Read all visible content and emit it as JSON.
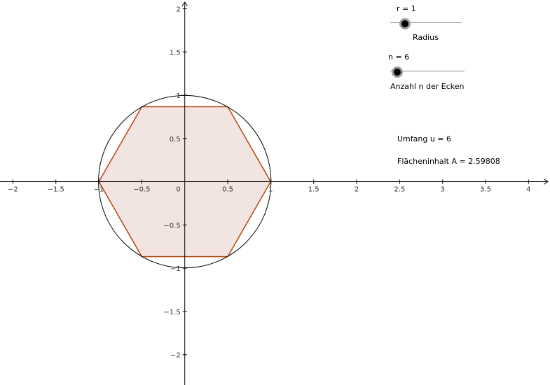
{
  "chart_data": {
    "type": "scatter",
    "axes": {
      "xlim": [
        -2.15,
        4.25
      ],
      "ylim": [
        -2.35,
        2.1
      ],
      "x_ticks": [
        -2,
        -1.5,
        -1,
        -0.5,
        0.5,
        1,
        1.5,
        2,
        2.5,
        3,
        3.5,
        4
      ],
      "y_ticks": [
        2,
        1.5,
        1,
        0.5,
        -0.5,
        -1,
        -1.5,
        -2
      ],
      "x_tick_labels": [
        "−2",
        "−1.5",
        "−1",
        "−0.5",
        "0.5",
        "1",
        "1.5",
        "2",
        "2.5",
        "3",
        "3.5",
        "4"
      ],
      "y_tick_labels": [
        "2",
        "1.5",
        "1",
        "0.5",
        "−0.5",
        "−1",
        "−1.5",
        "−2"
      ],
      "origin_label": "0",
      "grid": false
    },
    "circle": {
      "center": [
        0,
        0
      ],
      "radius": 1,
      "color": "#000000"
    },
    "polygon": {
      "vertices": [
        [
          1,
          0
        ],
        [
          0.5,
          0.866
        ],
        [
          -0.5,
          0.866
        ],
        [
          -1,
          0
        ],
        [
          -0.5,
          -0.866
        ],
        [
          0.5,
          -0.866
        ]
      ],
      "stroke": "#b5460f",
      "fill": "#f2e4e0"
    }
  },
  "sliders": {
    "radius": {
      "value_text": "r = 1",
      "caption": "Radius",
      "value": 1,
      "min": 0,
      "max": 10
    },
    "n": {
      "value_text": "n = 6",
      "caption": "Anzahl n der Ecken",
      "value": 6,
      "min": 6,
      "max": 100
    }
  },
  "results": {
    "umfang": "Umfang u = 6",
    "flaeche": "Flächeninhalt A = 2.59808"
  }
}
